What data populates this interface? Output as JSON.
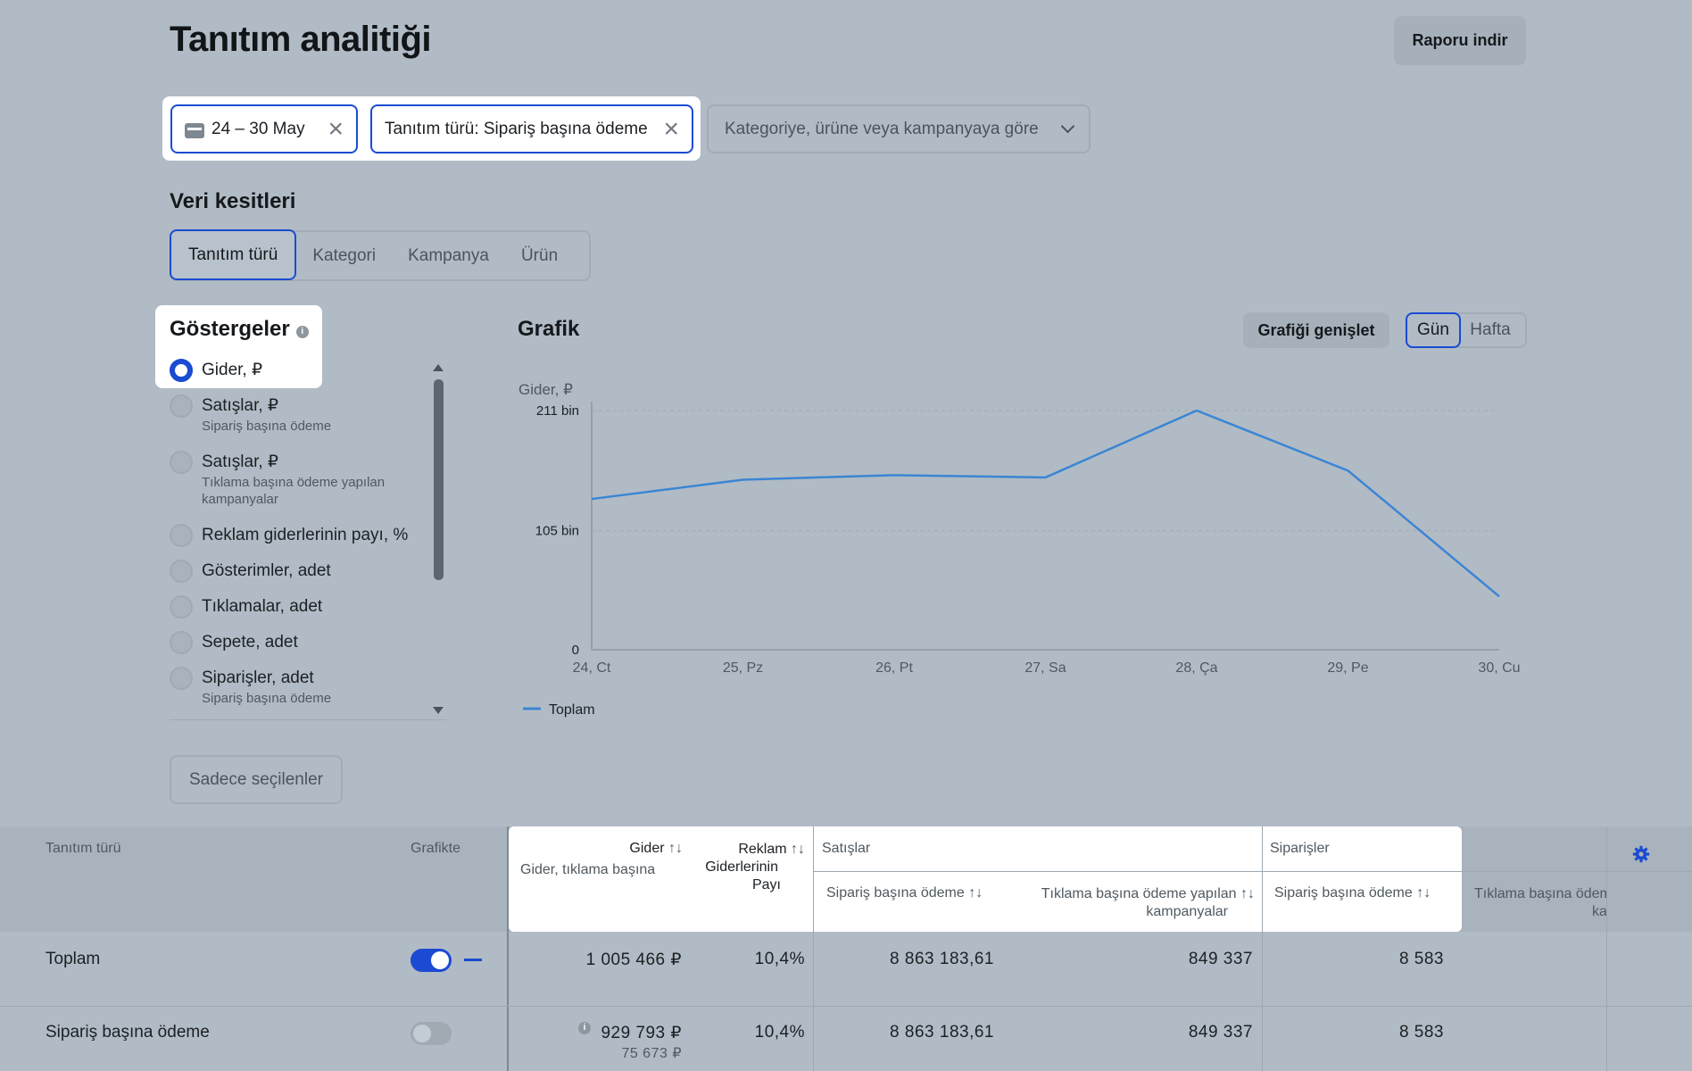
{
  "header": {
    "title": "Tanıtım analitiği",
    "download_label": "Raporu indir"
  },
  "filters": {
    "date_chip": "24 – 30 May",
    "type_chip": "Tanıtım türü: Sipariş başına ödeme",
    "dropdown_label": "Kategoriye, ürüne veya kampanyaya göre"
  },
  "slices": {
    "title": "Veri kesitleri",
    "tabs": [
      "Tanıtım türü",
      "Kategori",
      "Kampanya",
      "Ürün"
    ]
  },
  "metrics": {
    "title": "Göstergeler",
    "items": [
      {
        "label": "Gider, ₽",
        "sub": "",
        "checked": true
      },
      {
        "label": "Satışlar, ₽",
        "sub": "Sipariş başına ödeme",
        "checked": false
      },
      {
        "label": "Satışlar, ₽",
        "sub": "Tıklama başına ödeme yapılan kampanyalar",
        "checked": false
      },
      {
        "label": "Reklam giderlerinin payı, %",
        "sub": "",
        "checked": false
      },
      {
        "label": "Gösterimler, adet",
        "sub": "",
        "checked": false
      },
      {
        "label": "Tıklamalar, adet",
        "sub": "",
        "checked": false
      },
      {
        "label": "Sepete, adet",
        "sub": "",
        "checked": false
      },
      {
        "label": "Siparişler, adet",
        "sub": "Sipariş başına ödeme",
        "checked": false
      }
    ],
    "only_selected_label": "Sadece seçilenler"
  },
  "chart_panel": {
    "title": "Grafik",
    "expand_label": "Grafiği genişlet",
    "period_options": [
      "Gün",
      "Hafta"
    ],
    "active_period": "Gün"
  },
  "chart_data": {
    "type": "line",
    "ylabel": "Gider, ₽",
    "categories": [
      "24, Ct",
      "25, Pz",
      "26, Pt",
      "27, Sa",
      "28, Ça",
      "29, Pe",
      "30, Cu"
    ],
    "y_ticks": [
      {
        "value": 0,
        "label": "0"
      },
      {
        "value": 105,
        "label": "105 bin"
      },
      {
        "value": 211,
        "label": "211 bin"
      }
    ],
    "ylim": [
      0,
      211
    ],
    "series": [
      {
        "name": "Toplam",
        "values": [
          133,
          150,
          154,
          152,
          211,
          158,
          47
        ]
      }
    ],
    "line_color": "#3a86d4",
    "grid": true,
    "legend_position": "bottom-left"
  },
  "table": {
    "headers": {
      "type": "Tanıtım türü",
      "on_chart": "Grafikte",
      "cost": "Gider",
      "cost_sub": "Gider, tıklama başına",
      "ad_share_line1": "Reklam",
      "ad_share_line2": "Giderlerinin",
      "ad_share_line3": "Payı",
      "sales_group": "Satışlar",
      "sales_cpo": "Sipariş başına ödeme",
      "sales_cpc_line1": "Tıklama başına ödeme yapılan",
      "sales_cpc_line2": "kampanyalar",
      "orders_group": "Siparişler",
      "orders_cpo": "Sipariş başına ödeme",
      "orders_cpc_line1": "Tıklama başına ödeme yapılan",
      "orders_cpc_line2": "kampanyalar",
      "sort_icon": "↑↓"
    },
    "rows": [
      {
        "name": "Toplam",
        "on": true,
        "cost": "1 005 466 ₽",
        "cost_sub": "",
        "share": "10,4%",
        "sales_cpo": "8 863 183,61",
        "sales_cpc": "849 337",
        "orders_cpo": "8 583"
      },
      {
        "name": "Sipariş başına ödeme",
        "on": false,
        "cost": "929 793 ₽",
        "cost_sub": "75 673 ₽",
        "share": "10,4%",
        "sales_cpo": "8 863 183,61",
        "sales_cpc": "849 337",
        "orders_cpo": "8 583"
      }
    ]
  }
}
